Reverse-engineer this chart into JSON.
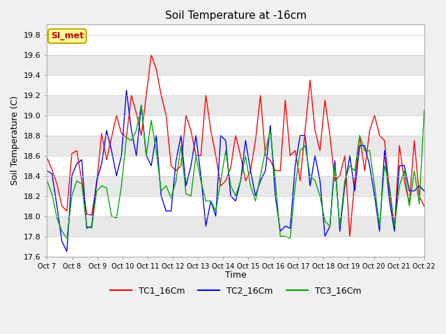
{
  "title": "Soil Temperature at -16cm",
  "ylabel": "Soil Temperature (C)",
  "xlabel": "Time",
  "ylim": [
    17.6,
    19.9
  ],
  "fig_facecolor": "#f0f0f0",
  "plot_bg_color": "#ffffff",
  "legend_label": "SI_met",
  "series_names": [
    "TC1_16Cm",
    "TC2_16Cm",
    "TC3_16Cm"
  ],
  "series_colors": [
    "#ff0000",
    "#0000ff",
    "#00aa00"
  ],
  "TC1_16Cm": [
    18.58,
    18.46,
    18.32,
    18.1,
    18.05,
    18.62,
    18.65,
    18.35,
    18.02,
    18.01,
    18.32,
    18.82,
    18.56,
    18.78,
    19.0,
    18.82,
    18.78,
    19.2,
    19.02,
    18.8,
    19.2,
    19.6,
    19.46,
    19.2,
    19.0,
    18.5,
    18.45,
    18.5,
    19.0,
    18.85,
    18.6,
    18.6,
    19.2,
    18.85,
    18.6,
    18.3,
    18.35,
    18.48,
    18.8,
    18.6,
    18.35,
    18.45,
    18.75,
    19.2,
    18.6,
    18.55,
    18.45,
    18.45,
    19.15,
    18.6,
    18.65,
    18.35,
    18.85,
    19.35,
    18.85,
    18.65,
    19.15,
    18.8,
    18.35,
    18.4,
    18.6,
    17.8,
    18.35,
    18.8,
    18.45,
    18.85,
    19.0,
    18.8,
    18.75,
    18.25,
    17.88,
    18.7,
    18.35,
    18.12,
    18.75,
    18.2,
    18.1
  ],
  "TC2_16Cm": [
    18.45,
    18.42,
    18.1,
    17.75,
    17.65,
    18.4,
    18.52,
    18.56,
    17.88,
    17.9,
    18.35,
    18.52,
    18.85,
    18.65,
    18.4,
    18.6,
    19.25,
    18.85,
    18.6,
    19.1,
    18.6,
    18.5,
    18.8,
    18.2,
    18.05,
    18.05,
    18.55,
    18.8,
    18.3,
    18.5,
    18.8,
    18.4,
    17.9,
    18.15,
    18.0,
    18.8,
    18.75,
    18.2,
    18.15,
    18.35,
    18.75,
    18.45,
    18.2,
    18.35,
    18.45,
    18.9,
    18.2,
    17.85,
    17.9,
    17.88,
    18.5,
    18.8,
    18.8,
    18.3,
    18.6,
    18.35,
    17.8,
    17.9,
    18.55,
    17.85,
    18.3,
    18.6,
    18.25,
    18.7,
    18.7,
    18.5,
    18.2,
    17.85,
    18.65,
    18.15,
    17.85,
    18.5,
    18.5,
    18.25,
    18.25,
    18.3,
    18.25
  ],
  "TC3_16Cm": [
    18.35,
    18.22,
    17.98,
    17.85,
    17.78,
    18.2,
    18.35,
    18.32,
    17.9,
    17.88,
    18.25,
    18.3,
    18.28,
    18.0,
    17.98,
    18.3,
    18.78,
    18.75,
    18.85,
    19.1,
    18.6,
    18.95,
    18.65,
    18.25,
    18.3,
    18.18,
    18.35,
    18.7,
    18.22,
    18.2,
    18.6,
    18.35,
    18.15,
    18.15,
    18.05,
    18.35,
    18.65,
    18.3,
    18.2,
    18.35,
    18.6,
    18.3,
    18.15,
    18.4,
    18.65,
    18.85,
    18.35,
    17.8,
    17.8,
    17.78,
    18.3,
    18.65,
    18.7,
    18.4,
    18.35,
    18.2,
    17.95,
    17.9,
    18.5,
    17.9,
    18.35,
    18.5,
    18.45,
    18.8,
    18.65,
    18.65,
    18.3,
    17.9,
    18.5,
    18.3,
    17.9,
    18.3,
    18.45,
    18.1,
    18.45,
    18.12,
    19.05
  ],
  "xtick_labels": [
    "Oct 7",
    "Oct 8",
    "Oct 9",
    "Oct 10",
    "Oct 11",
    "Oct 12",
    "Oct 13",
    "Oct 14",
    "Oct 15",
    "Oct 16",
    "Oct 17",
    "Oct 18",
    "Oct 19",
    "Oct 20",
    "Oct 21",
    "Oct 22"
  ],
  "ytick_values": [
    17.6,
    17.8,
    18.0,
    18.2,
    18.4,
    18.6,
    18.8,
    19.0,
    19.2,
    19.4,
    19.6,
    19.8
  ],
  "ytick_labels": [
    "17.6",
    "17.8",
    "18.0",
    "18.2",
    "18.4",
    "18.6",
    "18.8",
    "19.0",
    "19.2",
    "19.4",
    "19.6",
    "19.8"
  ],
  "stripe_colors": [
    "#ffffff",
    "#e8e8e8"
  ]
}
